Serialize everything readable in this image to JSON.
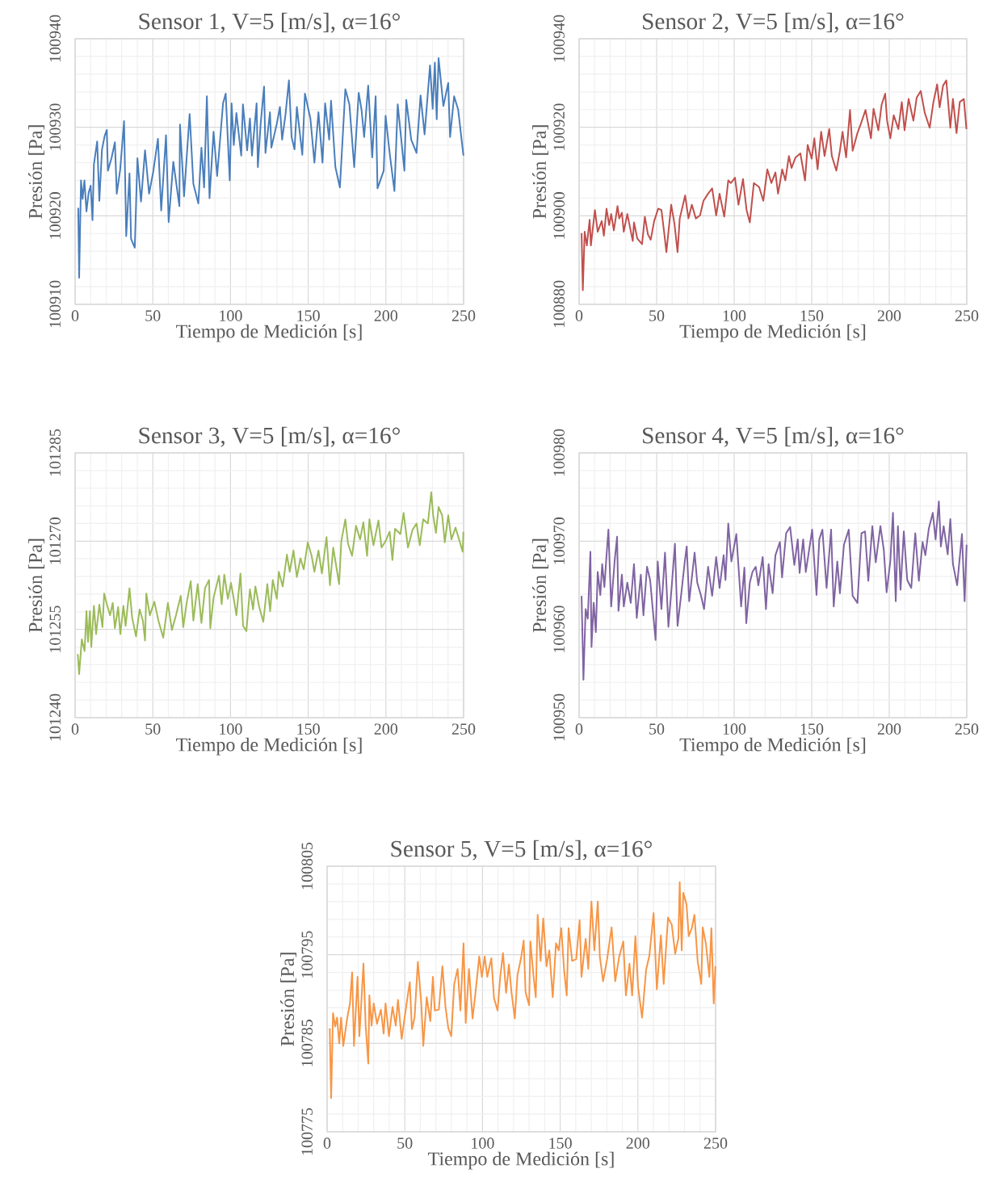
{
  "chart_data": [
    {
      "type": "line",
      "title": "Sensor 1, V=5 [m/s], α=16°",
      "xlabel": "Tiempo de Medición [s]",
      "ylabel": "Presión [Pa]",
      "xlim": [
        0,
        250
      ],
      "xticks": [
        0,
        50,
        100,
        150,
        200,
        250
      ],
      "ylim": [
        100910,
        100940
      ],
      "yticks": [
        100910,
        100920,
        100930,
        100940
      ],
      "grid": true,
      "x": [
        2,
        2.6,
        3.8,
        4.8,
        6,
        7.3,
        8.7,
        10,
        11.2,
        12.1,
        14.2,
        15.6,
        17.3,
        19,
        20.4,
        21.1,
        23.4,
        25.6,
        26.8,
        29,
        31.5,
        32.9,
        35,
        36,
        38.4,
        40.1,
        42.4,
        45,
        47.6,
        50.2,
        53.3,
        55.4,
        58.5,
        60.2,
        63.2,
        67.1,
        67.5,
        70.1,
        73.7,
        76.1,
        79.3,
        81.3,
        83,
        84.8,
        86.5,
        89.1,
        91.4,
        95.2,
        96.9,
        99.5,
        100.7,
        102.1,
        103.8,
        106.9,
        108,
        110.7,
        112.5,
        113.8,
        116.8,
        117.6,
        119.4,
        121.6,
        122.5,
        125.4,
        126.3,
        129.8,
        131.8,
        133.2,
        135.3,
        137.6,
        139.3,
        141.2,
        142.7,
        146.2,
        147.9,
        151.4,
        154,
        156.6,
        159.2,
        160.9,
        163.5,
        164.7,
        167.5,
        170.4,
        173.9,
        176.5,
        179.6,
        182.5,
        184.3,
        186,
        188.6,
        191.2,
        193.4,
        194.6,
        198.6,
        199.8,
        202.4,
        205.5,
        207.6,
        211.9,
        213.1,
        216.3,
        219.7,
        222.3,
        224.9,
        228.4,
        230.1,
        231.5,
        232.7,
        233.9,
        237,
        240.1,
        241.3,
        243.9,
        246.5,
        249.1,
        249.9
      ],
      "series": [
        {
          "color": "#4a7ebb",
          "values": [
            100920.9,
            100913.0,
            100924.0,
            100921.9,
            100924.0,
            100920.5,
            100922.6,
            100923.4,
            100919.5,
            100925.8,
            100928.4,
            100921.7,
            100927.5,
            100929.0,
            100929.7,
            100925.1,
            100926.5,
            100928.3,
            100922.5,
            100925.2,
            100930.7,
            100917.7,
            100924.8,
            100917.4,
            100916.4,
            100926.5,
            100921.6,
            100927.4,
            100922.5,
            100924.9,
            100928.7,
            100920.6,
            100929.1,
            100919.3,
            100926.1,
            100921.1,
            100930.3,
            100922.2,
            100931.5,
            100923.6,
            100921.4,
            100927.7,
            100923.2,
            100933.5,
            100922.0,
            100929.5,
            100924.5,
            100932.7,
            100933.8,
            100924.0,
            100932.7,
            100928.0,
            100931.6,
            100926.8,
            100932.6,
            100927.4,
            100931.0,
            100926.8,
            100932.7,
            100925.5,
            100930.4,
            100934.6,
            100927.1,
            100931.7,
            100927.7,
            100930.4,
            100932.3,
            100928.6,
            100931.3,
            100935.3,
            100928.9,
            100927.5,
            100932.3,
            100926.9,
            100933.8,
            100931.0,
            100926.0,
            100931.7,
            100926.0,
            100932.7,
            100928.6,
            100933.0,
            100925.5,
            100923.2,
            100934.3,
            100932.6,
            100925.5,
            100933.9,
            100932.0,
            100928.9,
            100934.7,
            100926.6,
            100933.5,
            100923.1,
            100925.1,
            100931.3,
            100927.1,
            100922.8,
            100932.6,
            100925.1,
            100933.1,
            100928.6,
            100927.1,
            100933.6,
            100929.2,
            100937.0,
            100932.1,
            100937.3,
            100930.9,
            100937.8,
            100932.4,
            100935.0,
            100928.9,
            100933.5,
            100932.0,
            100928.0,
            100926.8
          ]
        }
      ]
    },
    {
      "type": "line",
      "title": "Sensor 2, V=5 [m/s], α=16°",
      "xlabel": "Tiempo de Medición [s]",
      "ylabel": "Presión [Pa]",
      "xlim": [
        0,
        250
      ],
      "xticks": [
        0,
        50,
        100,
        150,
        200,
        250
      ],
      "ylim": [
        100880,
        100940
      ],
      "yticks": [
        100880,
        100900,
        100920,
        100940
      ],
      "grid": true,
      "x": [
        1.6,
        2.4,
        3.6,
        5,
        6.8,
        7.6,
        10.2,
        12,
        14.6,
        16,
        17.7,
        19.4,
        20.7,
        22.4,
        24.8,
        25.9,
        27.6,
        28.8,
        31.1,
        34.6,
        35.4,
        37.5,
        40.6,
        42.4,
        44.4,
        46.2,
        48.4,
        51,
        53.1,
        54.9,
        56.3,
        59.4,
        61.5,
        63.5,
        64.9,
        68.4,
        70.5,
        72.7,
        75.3,
        78,
        80.2,
        83.2,
        85.8,
        88.4,
        90.6,
        93.6,
        96.2,
        97.9,
        100.5,
        102.8,
        105.7,
        108,
        110.1,
        112.7,
        116.1,
        118.8,
        121.4,
        124,
        126.6,
        128.3,
        131,
        133,
        135.3,
        137,
        139.6,
        142.7,
        145.7,
        147.4,
        150,
        151.7,
        153.8,
        156.1,
        158.3,
        161.3,
        163,
        165.9,
        168.2,
        169.9,
        172.2,
        174.7,
        176.4,
        179.5,
        182.1,
        184.7,
        188.2,
        189.9,
        193,
        195.1,
        197.4,
        198.6,
        200.7,
        202.9,
        205.9,
        208.1,
        209.9,
        212.5,
        215.6,
        217.7,
        220.3,
        222.9,
        226.1,
        228.5,
        230.9,
        232.5,
        234.7,
        236.8,
        239.4,
        241.1,
        243.4,
        245.5,
        248.1,
        249.8
      ],
      "series": [
        {
          "color": "#c0504d",
          "values": [
            100896.1,
            100883.2,
            100896.4,
            100893.3,
            100899.1,
            100893.3,
            100901.3,
            100896.4,
            100898.8,
            100895.5,
            100901.6,
            100897.9,
            100900.4,
            100896.7,
            100902.2,
            100899.4,
            100900.7,
            100896.4,
            100900.4,
            100894.3,
            100898.5,
            100894.9,
            100893.6,
            100899.8,
            100895.8,
            100894.6,
            100898.8,
            100901.6,
            100901.3,
            100896.1,
            100891.8,
            100902.5,
            100898.2,
            100891.8,
            100899.4,
            100904.6,
            100899.4,
            100902.5,
            100899.4,
            100900.1,
            100903.4,
            100905.0,
            100906.2,
            100900.1,
            100905.0,
            100899.8,
            100908.0,
            100907.4,
            100908.6,
            100902.5,
            100908.3,
            100901.3,
            100898.5,
            100907.4,
            100906.5,
            100903.4,
            100910.5,
            100907.4,
            100909.8,
            100905.0,
            100910.5,
            100908.0,
            100913.5,
            100910.8,
            100913.2,
            100914.1,
            100908.0,
            100916.0,
            100912.9,
            100917.5,
            100910.5,
            100919.0,
            100913.5,
            100919.6,
            100913.5,
            100910.2,
            100914.7,
            100919.0,
            100913.2,
            100923.9,
            100914.7,
            100918.7,
            100921.2,
            100923.9,
            100917.5,
            100924.2,
            100919.3,
            100925.1,
            100927.6,
            100921.5,
            100917.5,
            100922.7,
            100919.6,
            100925.7,
            100919.3,
            100926.4,
            100921.5,
            100926.7,
            100928.2,
            100923.3,
            100919.9,
            100925.7,
            100929.7,
            100924.5,
            100929.4,
            100930.6,
            100919.9,
            100926.4,
            100918.7,
            100925.7,
            100926.4,
            100919.6
          ]
        }
      ]
    },
    {
      "type": "line",
      "title": "Sensor 3, V=5 [m/s], α=16°",
      "xlabel": "Tiempo de Medición [s]",
      "ylabel": "Presión [Pa]",
      "xlim": [
        0,
        250
      ],
      "xticks": [
        0,
        50,
        100,
        150,
        200,
        250
      ],
      "ylim": [
        101240,
        101285
      ],
      "yticks": [
        101240,
        101255,
        101270,
        101285
      ],
      "grid": true,
      "x": [
        1.7,
        2.6,
        4.3,
        6.1,
        7.3,
        8.3,
        9.5,
        10.4,
        12.1,
        13.5,
        15.6,
        17.6,
        18.7,
        20.4,
        22.5,
        24.2,
        25.6,
        27.7,
        29.1,
        31.1,
        32.5,
        35,
        36.7,
        39.2,
        41.5,
        43.6,
        45,
        45.8,
        48.1,
        51,
        53.6,
        56.7,
        59.7,
        62.3,
        64.9,
        68,
        69.6,
        71.8,
        74.4,
        76.1,
        78.9,
        81.3,
        83.6,
        86.2,
        87,
        89.1,
        92.6,
        94.3,
        96,
        98.3,
        100.3,
        102.1,
        103.8,
        106.4,
        108.1,
        110.2,
        112.5,
        114.5,
        116,
        118.5,
        121.1,
        123.7,
        125.5,
        127.2,
        129.8,
        131.1,
        133.6,
        136.3,
        138.1,
        140.5,
        142.7,
        145,
        147.1,
        149.7,
        152.2,
        154,
        156.6,
        158.8,
        161.8,
        164,
        166.1,
        169.9,
        171.3,
        173.9,
        175.6,
        178.2,
        180.8,
        183.4,
        185.5,
        187.9,
        189.4,
        192,
        195.2,
        197.2,
        199.8,
        202.4,
        204.2,
        205.9,
        209.3,
        211.4,
        214.2,
        217.1,
        219.7,
        221.8,
        224,
        227,
        229.2,
        230.4,
        232.2,
        233.9,
        236.2,
        237.9,
        240.1,
        242.2,
        244.8,
        247.4,
        249.4,
        249.9
      ],
      "series": [
        {
          "color": "#9bbb59",
          "values": [
            101250.8,
            101247.4,
            101253.3,
            101251.3,
            101258.1,
            101252.9,
            101258.1,
            101252.0,
            101259.0,
            101254.2,
            101259.2,
            101255.4,
            101261.1,
            101259.3,
            101257.4,
            101259.5,
            101255.2,
            101258.8,
            101254.2,
            101259.0,
            101255.6,
            101262.0,
            101257.0,
            101253.8,
            101258.4,
            101256.5,
            101253.1,
            101261.1,
            101257.4,
            101259.7,
            101256.5,
            101253.6,
            101259.5,
            101254.9,
            101257.4,
            101260.7,
            101255.4,
            101259.5,
            101263.2,
            101256.5,
            101262.7,
            101256.1,
            101262.0,
            101263.4,
            101255.2,
            101260.4,
            101264.1,
            101259.3,
            101264.3,
            101260.2,
            101262.9,
            101260.2,
            101257.4,
            101264.5,
            101255.6,
            101254.7,
            101261.8,
            101258.4,
            101262.3,
            101258.8,
            101256.3,
            101262.7,
            101258.1,
            101263.4,
            101260.2,
            101264.8,
            101262.3,
            101267.7,
            101264.8,
            101268.4,
            101263.9,
            101267.1,
            101265.2,
            101269.8,
            101267.5,
            101264.8,
            101268.4,
            101264.5,
            101270.7,
            101262.5,
            101268.9,
            101262.7,
            101270.0,
            101273.7,
            101269.6,
            101267.5,
            101272.6,
            101270.3,
            101273.2,
            101267.5,
            101273.7,
            101269.3,
            101273.5,
            101268.9,
            101270.0,
            101271.6,
            101266.8,
            101272.1,
            101271.2,
            101274.8,
            101268.9,
            101271.9,
            101273.0,
            101269.3,
            101273.7,
            101273.0,
            101278.3,
            101274.4,
            101271.4,
            101275.8,
            101274.4,
            101269.8,
            101274.4,
            101270.3,
            101272.3,
            101270.0,
            101268.2,
            101271.6
          ]
        }
      ]
    },
    {
      "type": "line",
      "title": "Sensor 4, V=5 [m/s], α=16°",
      "xlabel": "Tiempo de Medición [s]",
      "ylabel": "Presión [Pa]",
      "xlim": [
        0,
        250
      ],
      "xticks": [
        0,
        50,
        100,
        150,
        200,
        250
      ],
      "ylim": [
        100950,
        100980
      ],
      "yticks": [
        100950,
        100960,
        100970,
        100980
      ],
      "grid": true,
      "x": [
        1.6,
        2.8,
        4.2,
        5.6,
        7.3,
        8,
        9.4,
        10.8,
        12,
        13.7,
        14.9,
        16.3,
        17.7,
        18.9,
        20.7,
        22.9,
        24.5,
        25.4,
        27.6,
        28.8,
        31.1,
        33.3,
        35.4,
        37.2,
        39.8,
        41.5,
        43.8,
        45.8,
        47.6,
        49.3,
        50.7,
        53.1,
        55.4,
        57.6,
        59.7,
        61.8,
        63.5,
        65.8,
        68.1,
        69.4,
        71,
        74.5,
        76.2,
        78.5,
        80.6,
        83.2,
        85.8,
        88.4,
        90.6,
        93.2,
        94.4,
        96.2,
        98.2,
        101.4,
        102.8,
        104.5,
        106.6,
        107.8,
        110.1,
        111.8,
        113.9,
        115.6,
        118.4,
        120.5,
        122.2,
        124.8,
        126.6,
        129.5,
        130.9,
        133.5,
        136.1,
        138.8,
        141,
        142.2,
        144.5,
        146.2,
        150.3,
        153.1,
        154.9,
        156.9,
        159.6,
        162.5,
        164.2,
        166.5,
        168.2,
        170.8,
        173.9,
        176.4,
        179.5,
        182.1,
        184.4,
        186.5,
        189.1,
        191.3,
        194.3,
        196.5,
        198.3,
        200.7,
        202.4,
        204.2,
        205.6,
        207.3,
        209.4,
        211.6,
        214.2,
        216.8,
        219.1,
        221.5,
        223.3,
        225.5,
        228.1,
        229.9,
        232,
        233.3,
        235.1,
        237.7,
        239.4,
        241.1,
        243.8,
        246.9,
        248.6,
        249.9
      ],
      "series": [
        {
          "color": "#8064a2",
          "values": [
            100963.8,
            100954.3,
            100962.3,
            100961.2,
            100968.8,
            100958.0,
            100963.0,
            100959.7,
            100966.5,
            100963.9,
            100967.4,
            100964.8,
            100968.4,
            100971.3,
            100962.6,
            100967.7,
            100970.5,
            100962.1,
            100966.2,
            100962.6,
            100965.3,
            100963.0,
            100967.4,
            100961.3,
            100966.2,
            100961.6,
            100967.1,
            100965.6,
            100962.1,
            100958.8,
            100967.7,
            100962.3,
            100968.7,
            100960.3,
            100964.8,
            100969.7,
            100960.4,
            100963.9,
            100967.6,
            100969.4,
            100963.2,
            100968.7,
            100965.3,
            100963.9,
            100962.3,
            100967.1,
            100963.8,
            100968.2,
            100964.7,
            100968.4,
            100965.6,
            100972.0,
            100967.7,
            100970.8,
            100967.1,
            100962.6,
            100967.0,
            100960.7,
            100965.3,
            100966.5,
            100967.1,
            100965.0,
            100968.2,
            100962.3,
            100967.4,
            100964.1,
            100968.4,
            100969.9,
            100965.9,
            100970.9,
            100971.6,
            100967.3,
            100970.2,
            100966.4,
            100970.2,
            100966.5,
            100971.3,
            100963.9,
            100970.2,
            100971.3,
            100964.7,
            100971.3,
            100962.6,
            100967.7,
            100964.1,
            100969.6,
            100971.3,
            100963.8,
            100963.0,
            100970.9,
            100971.1,
            100965.5,
            100971.7,
            100967.6,
            100971.7,
            100969.0,
            100964.2,
            100967.7,
            100973.2,
            100963.2,
            100971.7,
            100964.5,
            100971.1,
            100965.6,
            100964.7,
            100970.9,
            100965.5,
            100969.9,
            100968.4,
            100971.4,
            100973.2,
            100970.2,
            100974.5,
            100969.4,
            100971.7,
            100968.5,
            100972.5,
            100967.4,
            100965.0,
            100970.8,
            100963.2,
            100969.6
          ]
        }
      ]
    },
    {
      "type": "line",
      "title": "Sensor 5, V=5 [m/s], α=16°",
      "xlabel": "Tiempo de Medición [s]",
      "ylabel": "Presión [Pa]",
      "xlim": [
        0,
        250
      ],
      "xticks": [
        0,
        50,
        100,
        150,
        200,
        250
      ],
      "ylim": [
        100775,
        100805
      ],
      "yticks": [
        100775,
        100785,
        100795,
        100805
      ],
      "grid": true,
      "x": [
        1.7,
        2.6,
        3.8,
        5.2,
        6.4,
        7.8,
        9,
        10.4,
        13,
        14.7,
        16.1,
        17.3,
        19.6,
        20.8,
        23.4,
        24.8,
        26.5,
        27.2,
        28.6,
        30,
        32.1,
        34.6,
        36.4,
        37.6,
        39.8,
        42.1,
        44.2,
        45.6,
        48,
        49.4,
        52,
        53.2,
        54.6,
        56.3,
        58.4,
        60.6,
        61.9,
        64.1,
        66.4,
        68.1,
        69.3,
        71.9,
        74.2,
        76.2,
        78,
        79.9,
        81.8,
        84,
        85.8,
        87.8,
        89.2,
        91.3,
        93.6,
        95.3,
        97.9,
        99.6,
        101.4,
        103.1,
        105.7,
        107.4,
        109.7,
        111.4,
        113.2,
        115.2,
        117,
        118.7,
        120.8,
        122.5,
        124.8,
        126.5,
        127.7,
        130,
        130.8,
        132.9,
        134.3,
        135.5,
        137.4,
        139.1,
        141.2,
        143,
        145.2,
        147.3,
        149,
        150.7,
        152.5,
        154.2,
        155.4,
        157.7,
        160.3,
        162.5,
        163.7,
        166.4,
        168.1,
        170.1,
        172,
        174.2,
        175.5,
        177.6,
        180.2,
        183.1,
        185.4,
        188,
        190.6,
        192.3,
        194.6,
        196.3,
        198.4,
        200.1,
        202.7,
        205.3,
        207.4,
        210.1,
        212.2,
        214.8,
        216.6,
        219.4,
        221.8,
        224,
        226.1,
        226.9,
        228.2,
        229.2,
        231.3,
        232.7,
        234.7,
        236.4,
        238.5,
        240.8,
        241.7,
        243.8,
        246,
        247.3,
        248.8,
        249.9
      ],
      "series": [
        {
          "color": "#f79646",
          "values": [
            100786.7,
            100778.8,
            100788.4,
            100786.9,
            100787.9,
            100785.0,
            100787.9,
            100784.7,
            100787.9,
            100789.5,
            100793.0,
            100784.7,
            100792.5,
            100785.8,
            100794.0,
            100787.0,
            100782.7,
            100790.4,
            100787.0,
            100789.5,
            100787.2,
            100788.8,
            100786.1,
            100789.5,
            100785.8,
            100789.1,
            100787.0,
            100789.9,
            100785.5,
            100787.3,
            100790.5,
            100791.9,
            100786.6,
            100787.9,
            100794.2,
            100789.5,
            100784.7,
            100790.2,
            100787.5,
            100792.5,
            100788.7,
            100788.8,
            100793.7,
            100789.1,
            100786.7,
            100785.8,
            100791.7,
            100793.4,
            100788.7,
            100796.3,
            100787.3,
            100793.4,
            100787.8,
            100790.4,
            100794.8,
            100792.5,
            100794.8,
            100792.5,
            100794.6,
            100790.1,
            100788.7,
            100792.5,
            100795.2,
            100790.7,
            100793.9,
            100790.7,
            100787.8,
            100792.7,
            100794.6,
            100796.6,
            100790.8,
            100789.3,
            100796.5,
            100792.5,
            100790.2,
            100799.5,
            100794.3,
            100799.1,
            100793.7,
            100795.5,
            100790.2,
            100796.3,
            100795.5,
            100798.0,
            100793.3,
            100790.4,
            100798.0,
            100794.3,
            100794.5,
            100798.9,
            100792.5,
            100796.8,
            100793.4,
            100801.0,
            100795.5,
            100801.0,
            100794.8,
            100792.0,
            100794.5,
            100798.1,
            100792.0,
            100794.8,
            100796.5,
            100790.4,
            100794.0,
            100790.4,
            100797.1,
            100791.4,
            100787.9,
            100793.3,
            100794.9,
            100799.7,
            100791.1,
            100797.2,
            100791.7,
            100799.2,
            100798.4,
            100795.1,
            100796.9,
            100803.2,
            100795.5,
            100802.0,
            100800.7,
            100797.1,
            100798.0,
            100799.5,
            100794.2,
            100791.7,
            100798.1,
            100796.2,
            100792.5,
            100798.0,
            100789.5,
            100793.7
          ]
        }
      ]
    }
  ]
}
